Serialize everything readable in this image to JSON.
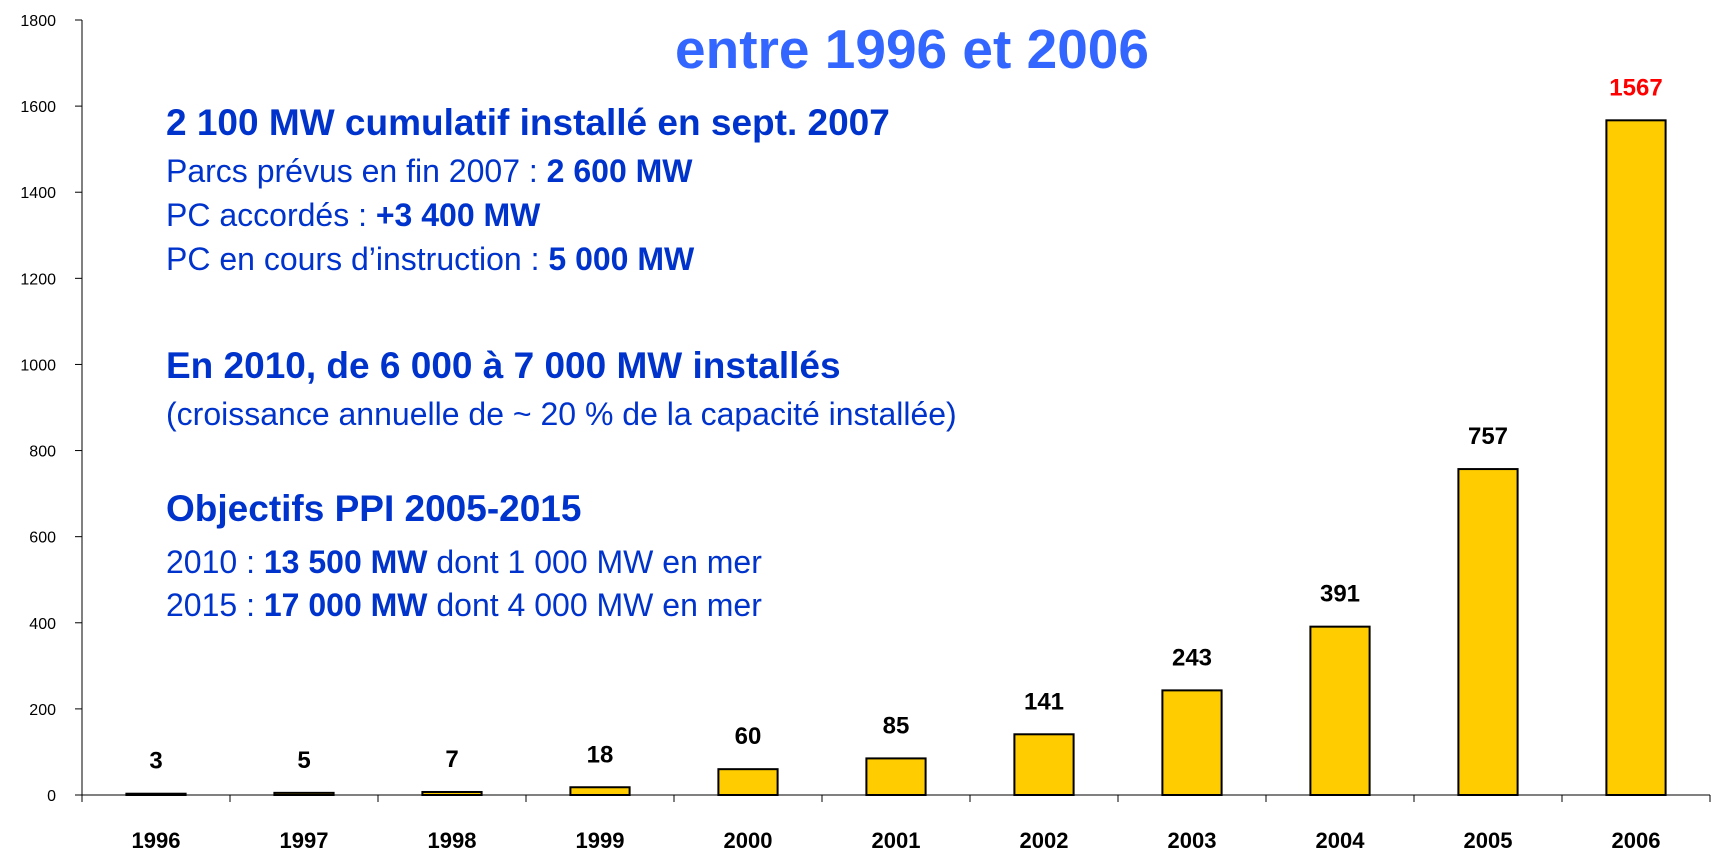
{
  "chart_data": {
    "type": "bar",
    "title": "entre 1996 et 2006",
    "categories": [
      "1996",
      "1997",
      "1998",
      "1999",
      "2000",
      "2001",
      "2002",
      "2003",
      "2004",
      "2005",
      "2006"
    ],
    "values": [
      3,
      5,
      7,
      18,
      60,
      85,
      141,
      243,
      391,
      757,
      1567
    ],
    "color": "#ffcc00",
    "value_label_colors": [
      "#000000",
      "#000000",
      "#000000",
      "#000000",
      "#000000",
      "#000000",
      "#000000",
      "#000000",
      "#000000",
      "#000000",
      "#ff0000"
    ],
    "ylim": [
      0,
      1800
    ],
    "yticks": [
      0,
      200,
      400,
      600,
      800,
      1000,
      1200,
      1400,
      1600,
      1800
    ],
    "grid": false,
    "annotations": [
      [
        {
          "text": "2 100 MW cumulatif installé en sept. 2007",
          "bold": true
        }
      ],
      [
        {
          "text": "Parcs prévus en fin 2007 : "
        },
        {
          "text": "2 600 MW",
          "bold": true
        }
      ],
      [
        {
          "text": "PC accordés : "
        },
        {
          "text": "+3 400 MW",
          "bold": true
        }
      ],
      [
        {
          "text": "PC en cours d’instruction : "
        },
        {
          "text": "5 000 MW",
          "bold": true
        }
      ],
      [
        {
          "text": "En 2010, de 6 000 à 7 000 MW installés",
          "bold": true
        }
      ],
      [
        {
          "text": "(croissance annuelle de ~ 20 % de la capacité installée)"
        }
      ],
      [
        {
          "text": "Objectifs PPI 2005-2015",
          "bold": true
        }
      ],
      [
        {
          "text": "2010 : "
        },
        {
          "text": "13 500 MW",
          "bold": true
        },
        {
          "text": " dont 1 000 MW en mer"
        }
      ],
      [
        {
          "text": "2015 : "
        },
        {
          "text": "17 000 MW",
          "bold": true
        },
        {
          "text": " dont 4 000 MW en mer"
        }
      ]
    ]
  }
}
